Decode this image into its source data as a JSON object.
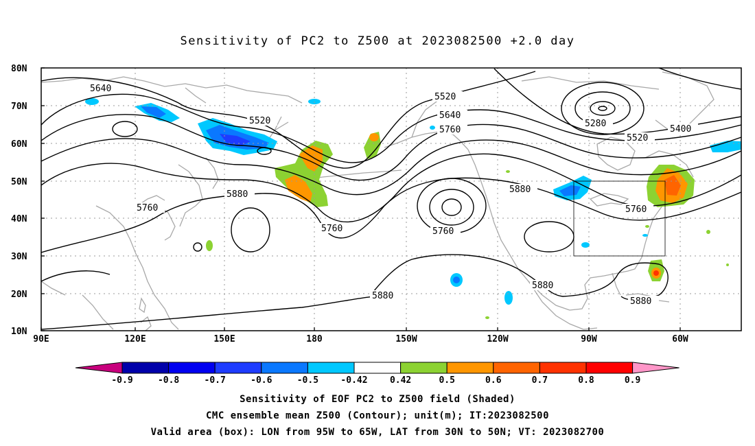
{
  "title": "Sensitivity of PC2 to Z500 at 2023082500 +2.0 day",
  "lat_labels": [
    "80N",
    "70N",
    "60N",
    "50N",
    "40N",
    "30N",
    "20N",
    "10N"
  ],
  "lon_labels": [
    "90E",
    "120E",
    "150E",
    "180",
    "150W",
    "120W",
    "90W",
    "60W"
  ],
  "contour_labels": [
    {
      "text": "5640"
    },
    {
      "text": "5520"
    },
    {
      "text": "5520"
    },
    {
      "text": "5640"
    },
    {
      "text": "5760"
    },
    {
      "text": "5280"
    },
    {
      "text": "5400"
    },
    {
      "text": "5520"
    },
    {
      "text": "5880"
    },
    {
      "text": "5880"
    },
    {
      "text": "5760"
    },
    {
      "text": "5760"
    },
    {
      "text": "5760"
    },
    {
      "text": "5760"
    },
    {
      "text": "5880"
    },
    {
      "text": "5880"
    },
    {
      "text": "5880"
    }
  ],
  "colorbar": {
    "labels": [
      "-0.9",
      "-0.8",
      "-0.7",
      "-0.6",
      "-0.5",
      "-0.42",
      "0.42",
      "0.5",
      "0.6",
      "0.7",
      "0.8",
      "0.9"
    ],
    "colors": [
      "#0000aa",
      "#0000f0",
      "#1e3cff",
      "#0a78ff",
      "#00c8ff",
      "#ffffff",
      "#8cd232",
      "#ff9600",
      "#ff6400",
      "#ff3200",
      "#ff0000"
    ],
    "left_tip_color": "#c8007d",
    "right_tip_color": "#ff96c8"
  },
  "captions": [
    "Sensitivity of EOF PC2 to Z500 field (Shaded)",
    "CMC ensemble mean Z500 (Contour); unit(m); IT:2023082500",
    "Valid area (box): LON from 95W to 65W, LAT from 30N to 50N; VT: 2023082700"
  ]
}
